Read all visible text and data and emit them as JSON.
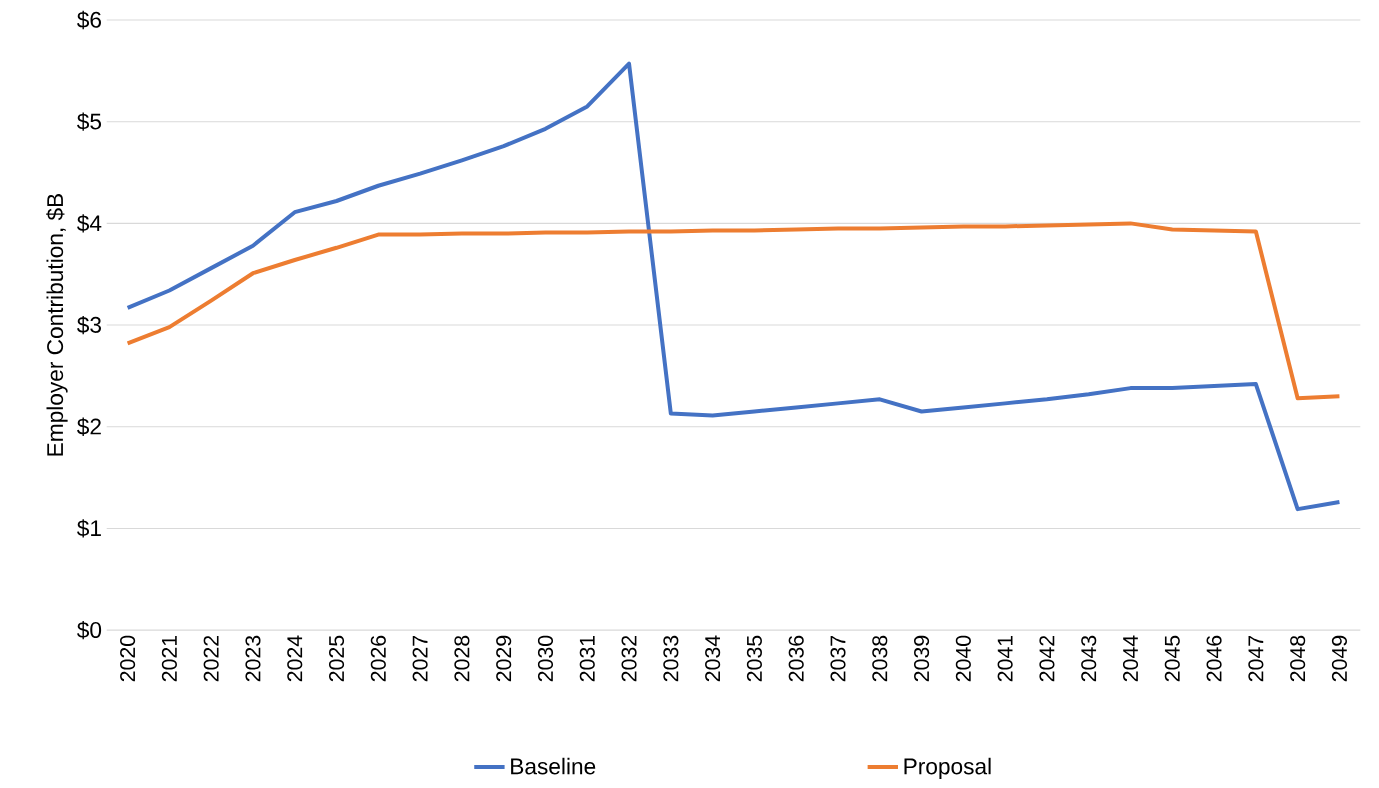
{
  "chart_data": {
    "type": "line",
    "ylabel": "Employer Contribution, $B",
    "categories": [
      "2020",
      "2021",
      "2022",
      "2023",
      "2024",
      "2025",
      "2026",
      "2027",
      "2028",
      "2029",
      "2030",
      "2031",
      "2032",
      "2033",
      "2034",
      "2035",
      "2036",
      "2037",
      "2038",
      "2039",
      "2040",
      "2041",
      "2042",
      "2043",
      "2044",
      "2045",
      "2046",
      "2047",
      "2048",
      "2049"
    ],
    "series": [
      {
        "name": "Baseline",
        "color": "#4472c4",
        "values": [
          3.17,
          3.34,
          3.56,
          3.78,
          4.11,
          4.22,
          4.37,
          4.49,
          4.62,
          4.76,
          4.93,
          5.15,
          5.57,
          2.13,
          2.11,
          2.15,
          2.19,
          2.23,
          2.27,
          2.15,
          2.19,
          2.23,
          2.27,
          2.32,
          2.38,
          2.38,
          2.4,
          2.42,
          1.19,
          1.26
        ]
      },
      {
        "name": "Proposal",
        "color": "#ed7d31",
        "values": [
          2.82,
          2.98,
          3.24,
          3.51,
          3.64,
          3.76,
          3.89,
          3.89,
          3.9,
          3.9,
          3.91,
          3.91,
          3.92,
          3.92,
          3.93,
          3.93,
          3.94,
          3.95,
          3.95,
          3.96,
          3.97,
          3.97,
          3.98,
          3.99,
          4.0,
          3.94,
          3.93,
          3.92,
          2.28,
          2.3
        ]
      }
    ],
    "ylim": [
      0,
      6
    ],
    "yticks": [
      {
        "value": 0,
        "label": "$0"
      },
      {
        "value": 1,
        "label": "$1"
      },
      {
        "value": 2,
        "label": "$2"
      },
      {
        "value": 3,
        "label": "$3"
      },
      {
        "value": 4,
        "label": "$4"
      },
      {
        "value": 5,
        "label": "$5"
      },
      {
        "value": 6,
        "label": "$6"
      }
    ],
    "grid": "y",
    "legend": "bottom",
    "marker": "none",
    "line_style": "solid"
  }
}
